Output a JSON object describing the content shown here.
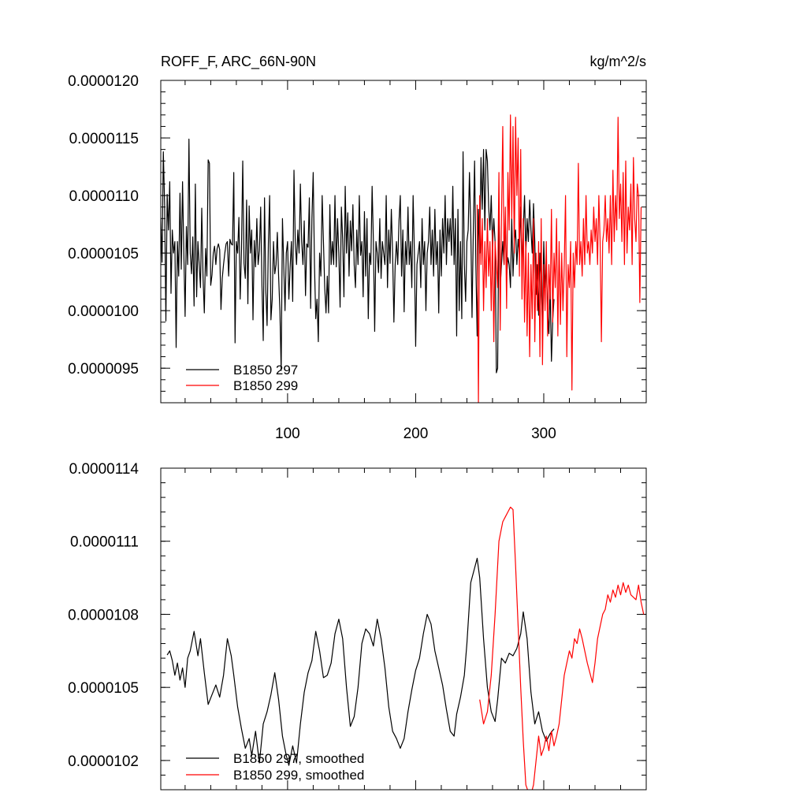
{
  "chart_data": [
    {
      "type": "line",
      "title": "ROFF_F, ARC_66N-90N",
      "units": "kg/m^2/s",
      "xlabel": "",
      "ylabel": "",
      "xlim": [
        1,
        380
      ],
      "ylim": [
        9.2e-06,
        1.2e-05
      ],
      "x_ticks": [
        100,
        200,
        300
      ],
      "x_tick_labels": [
        "100",
        "200",
        "300"
      ],
      "y_ticks": [
        9.5e-06,
        1e-05,
        1.05e-05,
        1.1e-05,
        1.15e-05,
        1.2e-05
      ],
      "y_tick_labels": [
        "0.0000095",
        "0.0000100",
        "0.0000105",
        "0.0000110",
        "0.0000115",
        "0.0000120"
      ],
      "legend_position": "bottom-left",
      "series": [
        {
          "name": "B1850 297",
          "color": "#000000",
          "x_start": 1,
          "values": [
            1.08e-05,
            1.042e-05,
            1.138e-05,
            1.092e-05,
            9.91e-06,
            1.101e-05,
            1.07e-05,
            1.112e-05,
            1.015e-05,
            1.07e-05,
            1.05e-05,
            1.06e-05,
            9.68e-06,
            1.06e-05,
            1.03e-05,
            1.102e-05,
            1.036e-05,
            1.112e-05,
            1.05e-05,
            9.95e-06,
            1.073e-05,
            1.04e-05,
            1.149e-05,
            1.05e-05,
            1.032e-05,
            1.064e-05,
            1.004e-05,
            1.11e-05,
            1.012e-05,
            1.06e-05,
            1.04e-05,
            1.02e-05,
            1.089e-05,
            1.029e-05,
            9.98e-06,
            1.054e-05,
            1.03e-05,
            1.131e-05,
            1.128e-05,
            1.022e-05,
            1.031e-05,
            1.05e-05,
            1.056e-05,
            1.04e-05,
            1.054e-05,
            1.058e-05,
            1.053e-05,
            1.001e-05,
            1.028e-05,
            1.04e-05,
            1.05e-05,
            1.058e-05,
            1.06e-05,
            1.03e-05,
            1.062e-05,
            1.058e-05,
            1.057e-05,
            1.12e-05,
            9.72e-06,
            1.06e-05,
            1.05e-05,
            1.081e-05,
            1.01e-05,
            1.052e-05,
            1.13e-05,
            1.041e-05,
            1.028e-05,
            1.096e-05,
            1.006e-05,
            1.091e-05,
            1.05e-05,
            1.07e-05,
            9.92e-06,
            1.061e-05,
            1.038e-05,
            1.08e-05,
            1.04e-05,
            1.052e-05,
            1.09e-05,
            1.022e-05,
            9.74e-06,
            1.098e-05,
            1.018e-05,
            9.87e-06,
            1.058e-05,
            1.1e-05,
            9.92e-06,
            1.01e-05,
            1.06e-05,
            1.032e-05,
            1.04e-05,
            1.068e-05,
            1.03e-05,
            1e-05,
            9.48e-06,
            1.08e-05,
            1.04e-05,
            1e-05,
            1.05e-05,
            1.06e-05,
            1.01e-05,
            1.038e-05,
            1.06e-05,
            1.008e-05,
            1.122e-05,
            1.06e-05,
            1.04e-05,
            1.07e-05,
            1.05e-05,
            1.11e-05,
            1.06e-05,
            1.04e-05,
            1.078e-05,
            1.013e-05,
            1.058e-05,
            1.055e-05,
            1.098e-05,
            1.002e-05,
            1.08e-05,
            1.12e-05,
            1.04e-05,
            9.93e-06,
            1.01e-05,
            9.73e-06,
            1.05e-05,
            1.03e-05,
            1.1e-05,
            1.06e-05,
            1.02e-05,
            9.98e-06,
            1.03e-05,
            9.98e-06,
            1.092e-05,
            1.04e-05,
            1.06e-05,
            1.04e-05,
            1.1e-05,
            1.038e-05,
            1.08e-05,
            1.05e-05,
            1.003e-05,
            1.09e-05,
            1.062e-05,
            1.012e-05,
            1.108e-05,
            1.05e-05,
            1.085e-05,
            1.03e-05,
            1.078e-05,
            1.052e-05,
            1.092e-05,
            1.04e-05,
            1.02e-05,
            1.07e-05,
            1.04e-05,
            1.1e-05,
            1.048e-05,
            1.06e-05,
            1.012e-05,
            1.086e-05,
            1.03e-05,
            1.08e-05,
            9.93e-06,
            1.05e-05,
            1.04e-05,
            1.108e-05,
            1.06e-05,
            9.82e-06,
            1.06e-05,
            1.05e-05,
            1.033e-05,
            1.08e-05,
            1.028e-05,
            1.06e-05,
            1.05e-05,
            1.04e-05,
            1.1e-05,
            1.02e-05,
            1.07e-05,
            1.041e-05,
            1.088e-05,
            1.05e-05,
            9.9e-06,
            1.04e-05,
            1.06e-05,
            1.04e-05,
            1.078e-05,
            1.1e-05,
            1.03e-05,
            1.07e-05,
            9.99e-06,
            1.06e-05,
            1.04e-05,
            1.09e-05,
            1.04e-05,
            1.06e-05,
            1.02e-05,
            1.1e-05,
            1.05e-05,
            9.69e-06,
            1.04e-05,
            1.05e-05,
            1.06e-05,
            1.02e-05,
            1.08e-05,
            1.04e-05,
            1.06e-05,
            1e-05,
            1.05e-05,
            1.06e-05,
            1.09e-05,
            1.04e-05,
            1.07e-05,
            1.03e-05,
            1.088e-05,
            1.04e-05,
            1.06e-05,
            9.98e-06,
            1.07e-05,
            1.03e-05,
            1.08e-05,
            1.05e-05,
            1.1e-05,
            1.04e-05,
            1.08e-05,
            1.06e-05,
            1.08e-05,
            1.048e-05,
            1.108e-05,
            1.04e-05,
            1.08e-05,
            9.78e-06,
            1.088e-05,
            1e-05,
            1.06e-05,
            9.93e-06,
            1.138e-05,
            1.04e-05,
            1.008e-05,
            1.06e-05,
            1.07e-05,
            1.12e-05,
            1.073e-05,
            9.94e-06,
            1.07e-05,
            1.13e-05,
            1.04e-05,
            9.78e-06,
            1.088e-05,
            1.05e-05,
            1.133e-05,
            1.088e-05,
            1.14e-05,
            1.07e-05,
            1.14e-05,
            1.13e-05,
            1.09e-05,
            1.07e-05,
            1.1e-05,
            1.055e-05,
            1.08e-05,
            1.06e-05,
            9.46e-06,
            9.5e-06,
            1.088e-05,
            1.02e-05,
            1.04e-05,
            1.06e-05,
            1.04e-05,
            1.08e-05,
            1.03e-05,
            1.046e-05,
            1.04e-05,
            1.02e-05,
            1.08e-05,
            1.03e-05,
            1.06e-05,
            1.07e-05,
            1.04e-05,
            1.062e-05,
            1.05e-05,
            1.09e-05,
            1.04e-05,
            1.07e-05,
            1.1e-05,
            1.05e-05,
            1.08e-05,
            1.06e-05,
            1.096e-05,
            1.07e-05,
            1.05e-05,
            1.093e-05,
            1.06e-05,
            1.014e-05,
            1.04e-05,
            9.96e-06,
            1.05e-05,
            1.02e-05,
            9.9e-06,
            1.06e-05,
            1.02e-05,
            1.04e-05,
            1e-05,
            9.8e-06,
            1.02e-05,
            9.56e-06,
            9.92e-06,
            1.01e-05
          ]
        },
        {
          "name": "B1850 299",
          "color": "#ff0000",
          "x_start": 248,
          "values": [
            1.092e-05,
            9.2e-06,
            1.1e-05,
            1.04e-05,
            1.08e-05,
            1e-05,
            1.06e-05,
            1.02e-05,
            1.08e-05,
            1.03e-05,
            1.06e-05,
            1e-05,
            1.07e-05,
            9.73e-06,
            1.06e-05,
            1.04e-05,
            1.02e-05,
            1.12e-05,
            9.83e-06,
            1.08e-05,
            1.16e-05,
            1.04e-05,
            1.09e-05,
            1.002e-05,
            1.12e-05,
            1.07e-05,
            1.17e-05,
            1.08e-05,
            1.16e-05,
            1.05e-05,
            1.168e-05,
            1.1e-05,
            1.15e-05,
            1.03e-05,
            1.14e-05,
            1.01e-05,
            1.08e-05,
            9.9e-06,
            1.06e-05,
            9.78e-06,
            1.05e-05,
            9.6e-06,
            1.04e-05,
            9.93e-06,
            1.08e-05,
            9.73e-06,
            1.05e-05,
            1e-05,
            1.06e-05,
            9.6e-06,
            1.08e-05,
            9.53e-06,
            1.04e-05,
            1e-05,
            1.06e-05,
            9.78e-06,
            1.04e-05,
            1.01e-05,
            1.088e-05,
            9.9e-06,
            1.05e-05,
            1.02e-05,
            1.08e-05,
            9.78e-06,
            1.06e-05,
            9.88e-06,
            1.05e-05,
            1e-05,
            1.04e-05,
            1.1e-05,
            9.6e-06,
            1.04e-05,
            1.02e-05,
            1.06e-05,
            9.31e-06,
            1.05e-05,
            1.02e-05,
            1.06e-05,
            1.04e-05,
            1.128e-05,
            1.04e-05,
            1.06e-05,
            1.03e-05,
            1.08e-05,
            1.04e-05,
            1.1e-05,
            1.05e-05,
            1.06e-05,
            1.04e-05,
            1.07e-05,
            1.05e-05,
            1.09e-05,
            1.06e-05,
            1.08e-05,
            1.04e-05,
            1.1e-05,
            1.06e-05,
            9.73e-06,
            1.06e-05,
            1.07e-05,
            1.1e-05,
            1.06e-05,
            1.08e-05,
            1.05e-05,
            1.1e-05,
            1.04e-05,
            1.122e-05,
            1.06e-05,
            1.1e-05,
            1.07e-05,
            1.168e-05,
            1.08e-05,
            1.11e-05,
            1.06e-05,
            1.12e-05,
            1.04e-05,
            1.13e-05,
            1.05e-05,
            1.09e-05,
            1.07e-05,
            1.11e-05,
            1.04e-05,
            1.133e-05,
            1.08e-05,
            1.06e-05,
            1.11e-05,
            1.1e-05,
            1.007e-05,
            1.09e-05
          ]
        }
      ]
    },
    {
      "type": "line",
      "title": "",
      "xlabel": "",
      "ylabel": "",
      "xlim": [
        1,
        380
      ],
      "ylim": [
        1.008e-05,
        1.14e-05
      ],
      "x_ticks": [
        100,
        200,
        300
      ],
      "x_tick_labels": [
        "",
        "",
        ""
      ],
      "y_ticks": [
        1.02e-05,
        1.05e-05,
        1.08e-05,
        1.11e-05,
        1.14e-05
      ],
      "y_tick_labels": [
        "0.0000102",
        "0.0000105",
        "0.0000108",
        "0.0000111",
        "0.0000114"
      ],
      "legend_position": "bottom-left",
      "series": [
        {
          "name": "B1850 297, smoothed",
          "color": "#000000",
          "x": [
            6,
            8,
            10,
            12,
            14,
            16,
            18,
            20,
            22,
            24,
            27,
            30,
            32,
            35,
            38,
            41,
            44,
            47,
            50,
            53,
            56,
            58,
            61,
            64,
            67,
            70,
            72,
            75,
            78,
            81,
            84,
            87,
            90,
            93,
            96,
            99,
            101,
            104,
            107,
            110,
            113,
            116,
            119,
            122,
            125,
            128,
            131,
            134,
            137,
            140,
            143,
            146,
            149,
            152,
            155,
            158,
            161,
            164,
            167,
            170,
            173,
            176,
            179,
            182,
            185,
            188,
            191,
            194,
            197,
            200,
            203,
            206,
            209,
            212,
            215,
            218,
            221,
            224,
            227,
            230,
            232,
            235,
            238,
            240,
            243,
            246,
            248,
            250,
            253,
            256,
            259,
            262,
            264,
            267,
            270,
            273,
            276,
            279,
            282,
            284,
            287,
            290,
            293,
            296,
            299,
            302,
            305,
            308
          ],
          "values": [
            1.0633e-05,
            1.065e-05,
            1.061e-05,
            1.055e-05,
            1.06e-05,
            1.053e-05,
            1.058e-05,
            1.05e-05,
            1.062e-05,
            1.065e-05,
            1.073e-05,
            1.063e-05,
            1.07e-05,
            1.056e-05,
            1.043e-05,
            1.047e-05,
            1.051e-05,
            1.046e-05,
            1.055e-05,
            1.07e-05,
            1.063e-05,
            1.055e-05,
            1.042e-05,
            1.033e-05,
            1.025e-05,
            1.029e-05,
            1.022e-05,
            1.032e-05,
            1.019e-05,
            1.035e-05,
            1.04e-05,
            1.047e-05,
            1.056e-05,
            1.045e-05,
            1.03e-05,
            1.022e-05,
            1.018e-05,
            1.026e-05,
            1.019e-05,
            1.035e-05,
            1.048e-05,
            1.056e-05,
            1.061e-05,
            1.073e-05,
            1.065e-05,
            1.054e-05,
            1.055e-05,
            1.06e-05,
            1.072e-05,
            1.078e-05,
            1.07e-05,
            1.05e-05,
            1.034e-05,
            1.038e-05,
            1.05e-05,
            1.068e-05,
            1.074e-05,
            1.072e-05,
            1.067e-05,
            1.078e-05,
            1.07e-05,
            1.058e-05,
            1.042e-05,
            1.032e-05,
            1.029e-05,
            1.025e-05,
            1.029e-05,
            1.04e-05,
            1.049e-05,
            1.057e-05,
            1.062e-05,
            1.072e-05,
            1.08e-05,
            1.076e-05,
            1.065e-05,
            1.058e-05,
            1.051e-05,
            1.041e-05,
            1.032e-05,
            1.03e-05,
            1.039e-05,
            1.046e-05,
            1.055e-05,
            1.068e-05,
            1.093e-05,
            1.099e-05,
            1.103e-05,
            1.095e-05,
            1.07e-05,
            1.05e-05,
            1.04e-05,
            1.036e-05,
            1.045e-05,
            1.062e-05,
            1.06e-05,
            1.064e-05,
            1.063e-05,
            1.066e-05,
            1.072e-05,
            1.081e-05,
            1.07e-05,
            1.048e-05,
            1.035e-05,
            1.04e-05,
            1.032e-05,
            1.028e-05,
            1.031e-05,
            1.033e-05
          ]
        },
        {
          "name": "B1850 299, smoothed",
          "color": "#ff0000",
          "x": [
            250,
            253,
            256,
            259,
            262,
            265,
            268,
            270,
            272,
            274,
            276,
            278,
            280,
            282,
            284,
            286,
            288,
            290,
            292,
            294,
            296,
            298,
            300,
            302,
            304,
            306,
            308,
            310,
            312,
            314,
            316,
            318,
            320,
            322,
            324,
            326,
            328,
            330,
            332,
            334,
            336,
            338,
            340,
            342,
            344,
            346,
            348,
            350,
            352,
            354,
            356,
            358,
            360,
            362,
            364,
            366,
            368,
            370,
            372,
            374,
            376,
            378
          ],
          "values": [
            1.045e-05,
            1.035e-05,
            1.04e-05,
            1.055e-05,
            1.08e-05,
            1.11e-05,
            1.118e-05,
            1.12e-05,
            1.122e-05,
            1.124e-05,
            1.123e-05,
            1.1e-05,
            1.075e-05,
            1.05e-05,
            1.028e-05,
            1.01e-05,
            1.007e-05,
            1.006e-05,
            1.01e-05,
            1.02e-05,
            1.03e-05,
            1.022e-05,
            1.025e-05,
            1.03e-05,
            1.024e-05,
            1.032e-05,
            1.026e-05,
            1.03e-05,
            1.035e-05,
            1.045e-05,
            1.055e-05,
            1.06e-05,
            1.065e-05,
            1.062e-05,
            1.07e-05,
            1.068e-05,
            1.074e-05,
            1.07e-05,
            1.065e-05,
            1.06e-05,
            1.056e-05,
            1.052e-05,
            1.06e-05,
            1.07e-05,
            1.075e-05,
            1.08e-05,
            1.082e-05,
            1.088e-05,
            1.085e-05,
            1.09e-05,
            1.087e-05,
            1.092e-05,
            1.088e-05,
            1.093e-05,
            1.089e-05,
            1.092e-05,
            1.088e-05,
            1.087e-05,
            1.086e-05,
            1.092e-05,
            1.085e-05,
            1.08e-05
          ]
        }
      ]
    }
  ]
}
